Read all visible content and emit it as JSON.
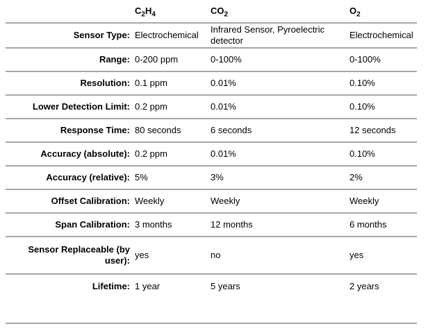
{
  "colors": {
    "row_border": "#a7a7a7",
    "text": "#000000",
    "background": "#ffffff"
  },
  "table": {
    "header": {
      "label_column": "",
      "columns": [
        {
          "id": "c2h4",
          "display": "C2H4",
          "segments": [
            [
              "C",
              false
            ],
            [
              "2",
              true
            ],
            [
              "H",
              false
            ],
            [
              "4",
              true
            ]
          ]
        },
        {
          "id": "co2",
          "display": "CO2",
          "segments": [
            [
              "CO",
              false
            ],
            [
              "2",
              true
            ]
          ]
        },
        {
          "id": "o2",
          "display": "O2",
          "segments": [
            [
              "O",
              false
            ],
            [
              "2",
              true
            ]
          ]
        }
      ]
    },
    "rows": [
      {
        "label": "Sensor Type:",
        "values": [
          "Electrochemical",
          "Infrared Sensor, Pyroelectric detector",
          "Electrochemical"
        ]
      },
      {
        "label": "Range:",
        "values": [
          "0-200 ppm",
          "0-100%",
          "0-100%"
        ]
      },
      {
        "label": "Resolution:",
        "values": [
          "0.1 ppm",
          "0.01%",
          "0.10%"
        ]
      },
      {
        "label": "Lower Detection Limit:",
        "values": [
          "0.2 ppm",
          "0.01%",
          "0.10%"
        ]
      },
      {
        "label": "Response Time:",
        "values": [
          "80 seconds",
          "6 seconds",
          "12 seconds"
        ]
      },
      {
        "label": "Accuracy (absolute):",
        "values": [
          "0.2 ppm",
          "0.01%",
          "0.10%"
        ]
      },
      {
        "label": "Accuracy (relative):",
        "values": [
          "5%",
          "3%",
          "2%"
        ]
      },
      {
        "label": "Offset Calibration:",
        "values": [
          "Weekly",
          "Weekly",
          "Weekly"
        ]
      },
      {
        "label": "Span Calibration:",
        "values": [
          "3 months",
          "12 months",
          "6 months"
        ]
      },
      {
        "label": "Sensor Replaceable (by user):",
        "values": [
          "yes",
          "no",
          "yes"
        ]
      },
      {
        "label": "Lifetime:",
        "values": [
          "1 year",
          "5 years",
          "2 years"
        ]
      }
    ]
  }
}
